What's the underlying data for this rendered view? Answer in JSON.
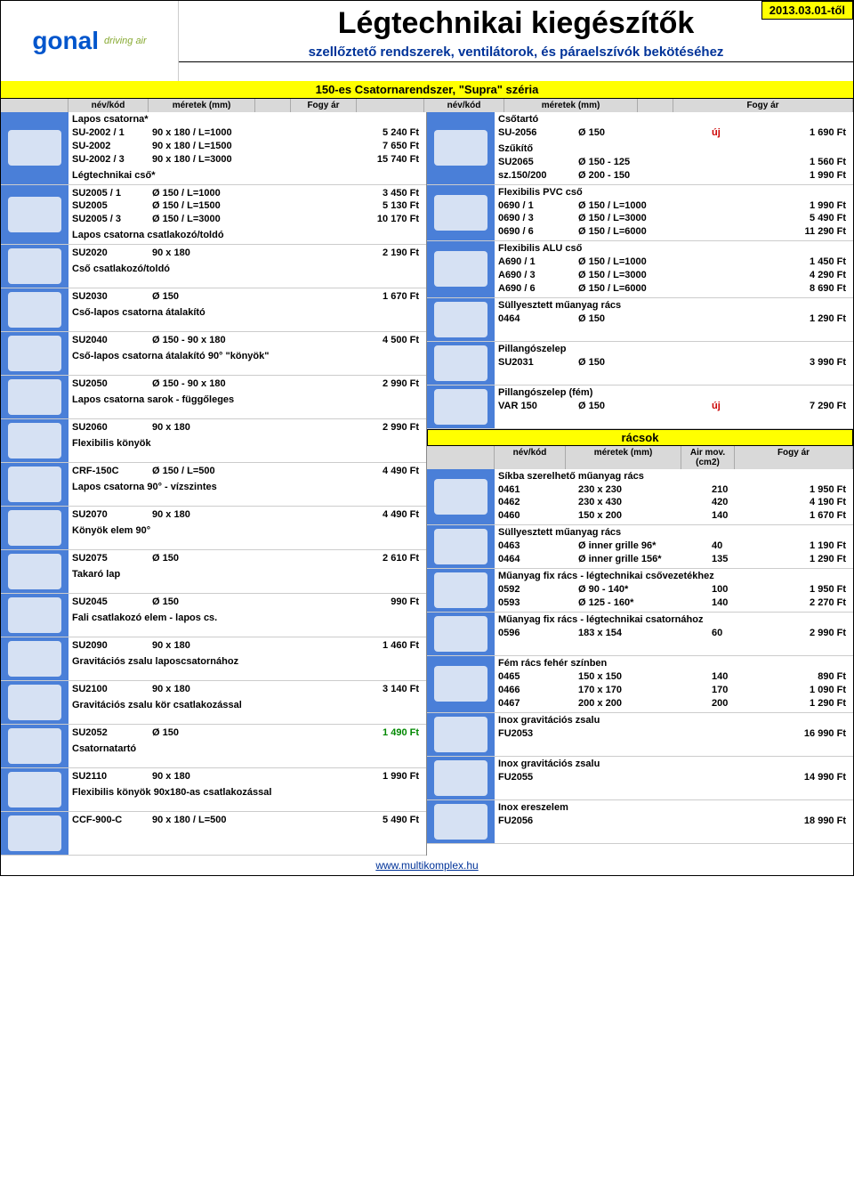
{
  "colors": {
    "yellow": "#ffff00",
    "blue_bg": "#4a7fd8",
    "header_gray": "#d9d9d9",
    "dark_blue": "#003399",
    "red": "#cc0000",
    "green": "#008800"
  },
  "header": {
    "date_badge": "2013.03.01-től",
    "logo_main": "gonal",
    "logo_sub": "driving air",
    "title": "Légtechnikai kiegészítők",
    "subtitle": "szellőztető rendszerek, ventilátorok, és páraelszívók bekötéséhez",
    "series": "150-es Csatornarendszer, \"Supra\" széria"
  },
  "col_headers": {
    "left": [
      "",
      "név/kód",
      "méretek (mm)",
      "",
      "Fogy ár"
    ],
    "right": [
      "",
      "név/kód",
      "méretek (mm)",
      "",
      "Fogy ár"
    ],
    "racs": [
      "",
      "név/kód",
      "méretek (mm)",
      "Air mov. (cm2)",
      "Fogy ár"
    ]
  },
  "racs_title": "rácsok",
  "uj_label": "új",
  "footer_url": "www.multikomplex.hu",
  "left_sections": [
    {
      "img": true,
      "title": "Lapos csatorna*",
      "rows": [
        {
          "code": "SU-2002 / 1",
          "size": "90 x 180 / L=1000",
          "price": "5 240 Ft"
        },
        {
          "code": "SU-2002",
          "size": "90 x 180 / L=1500",
          "price": "7 650 Ft"
        },
        {
          "code": "SU-2002 / 3",
          "size": "90 x 180 / L=3000",
          "price": "15 740 Ft"
        }
      ],
      "subtitles": [
        {
          "t": "Légtechnikai cső*"
        }
      ]
    },
    {
      "img": true,
      "title": "",
      "rows": [
        {
          "code": "SU2005 / 1",
          "size": "Ø 150 / L=1000",
          "price": "3 450 Ft"
        },
        {
          "code": "SU2005",
          "size": "Ø 150 / L=1500",
          "price": "5 130 Ft"
        },
        {
          "code": "SU2005 / 3",
          "size": "Ø 150 / L=3000",
          "price": "10 170 Ft"
        }
      ],
      "subtitles": [
        {
          "t": "Lapos csatorna csatlakozó/toldó"
        }
      ]
    },
    {
      "img": true,
      "title": "",
      "rows": [
        {
          "code": "SU2020",
          "size": "90 x 180",
          "price": "2 190 Ft"
        }
      ],
      "subtitles": [
        {
          "t": "Cső csatlakozó/toldó"
        }
      ]
    },
    {
      "img": true,
      "title": "",
      "rows": [
        {
          "code": "SU2030",
          "size": "Ø 150",
          "price": "1 670 Ft"
        }
      ],
      "subtitles": [
        {
          "t": "Cső-lapos csatorna átalakító"
        }
      ]
    },
    {
      "img": true,
      "title": "",
      "rows": [
        {
          "code": "SU2040",
          "size": "Ø 150 - 90 x 180",
          "price": "4 500 Ft"
        }
      ],
      "subtitles": [
        {
          "t": "Cső-lapos csatorna átalakító 90° \"könyök\""
        }
      ]
    },
    {
      "img": true,
      "title": "",
      "rows": [
        {
          "code": "SU2050",
          "size": "Ø 150 - 90 x 180",
          "price": "2 990 Ft"
        }
      ],
      "subtitles": [
        {
          "t": "Lapos csatorna sarok - függőleges"
        }
      ]
    },
    {
      "img": true,
      "title": "",
      "rows": [
        {
          "code": "SU2060",
          "size": "90 x 180",
          "price": "2 990 Ft"
        }
      ],
      "subtitles": [
        {
          "t": "Flexibilis könyök"
        }
      ]
    },
    {
      "img": true,
      "title": "",
      "rows": [
        {
          "code": "CRF-150C",
          "size": "Ø 150 / L=500",
          "price": "4 490 Ft"
        }
      ],
      "subtitles": [
        {
          "t": "Lapos csatorna 90° - vízszintes"
        }
      ]
    },
    {
      "img": true,
      "title": "",
      "rows": [
        {
          "code": "SU2070",
          "size": "90 x 180",
          "price": "4 490 Ft"
        }
      ],
      "subtitles": [
        {
          "t": "Könyök elem 90°"
        }
      ]
    },
    {
      "img": true,
      "title": "",
      "rows": [
        {
          "code": "SU2075",
          "size": "Ø 150",
          "price": "2 610 Ft"
        }
      ],
      "subtitles": [
        {
          "t": "Takaró lap"
        }
      ]
    },
    {
      "img": true,
      "title": "",
      "rows": [
        {
          "code": "SU2045",
          "size": "Ø 150",
          "price": "990 Ft"
        }
      ],
      "subtitles": [
        {
          "t": "Fali csatlakozó elem - lapos cs."
        }
      ]
    },
    {
      "img": true,
      "title": "",
      "rows": [
        {
          "code": "SU2090",
          "size": "90 x 180",
          "price": "1 460 Ft"
        }
      ],
      "subtitles": [
        {
          "t": "Gravitációs zsalu laposcsatornához"
        }
      ]
    },
    {
      "img": true,
      "title": "",
      "rows": [
        {
          "code": "SU2100",
          "size": "90 x 180",
          "price": "3 140 Ft"
        }
      ],
      "subtitles": [
        {
          "t": "Gravitációs zsalu kör csatlakozással"
        }
      ]
    },
    {
      "img": true,
      "title": "",
      "rows": [
        {
          "code": "SU2052",
          "size": "Ø 150",
          "price": "1 490 Ft",
          "green": true
        }
      ],
      "subtitles": [
        {
          "t": "Csatornatartó"
        }
      ]
    },
    {
      "img": true,
      "title": "",
      "rows": [
        {
          "code": "SU2110",
          "size": "90 x 180",
          "price": "1 990 Ft"
        }
      ],
      "subtitles": [
        {
          "t": "Flexibilis könyök 90x180-as csatlakozással"
        }
      ]
    },
    {
      "img": true,
      "title": "",
      "rows": [
        {
          "code": "CCF-900-C",
          "size": "90 x 180 / L=500",
          "price": "5 490 Ft"
        }
      ]
    }
  ],
  "right_sections": [
    {
      "img": true,
      "title": "Csőtartó",
      "rows": [
        {
          "code": "SU-2056",
          "size": "Ø 150",
          "extra": "új",
          "price": "1 690 Ft"
        }
      ],
      "subtitles": [
        {
          "t": "Szűkítő"
        }
      ],
      "rows2": [
        {
          "code": "SU2065",
          "size": "Ø 150 - 125",
          "price": "1 560 Ft"
        },
        {
          "code": "sz.150/200",
          "size": "Ø 200 - 150",
          "price": "1 990 Ft"
        }
      ]
    },
    {
      "img": true,
      "title": "Flexibilis PVC cső",
      "rows": [
        {
          "code": "0690 / 1",
          "size": "Ø 150 / L=1000",
          "price": "1 990 Ft"
        },
        {
          "code": "0690 / 3",
          "size": "Ø 150 / L=3000",
          "price": "5 490 Ft"
        },
        {
          "code": "0690 / 6",
          "size": "Ø 150 / L=6000",
          "price": "11 290 Ft"
        }
      ]
    },
    {
      "img": true,
      "title": "Flexibilis ALU cső",
      "rows": [
        {
          "code": "A690 / 1",
          "size": "Ø 150 / L=1000",
          "price": "1 450 Ft"
        },
        {
          "code": "A690 / 3",
          "size": "Ø 150 / L=3000",
          "price": "4 290 Ft"
        },
        {
          "code": "A690 / 6",
          "size": "Ø 150 / L=6000",
          "price": "8 690 Ft"
        }
      ]
    },
    {
      "img": true,
      "title": "Süllyesztett műanyag rács",
      "rows": [
        {
          "code": "0464",
          "size": "Ø 150",
          "price": "1 290 Ft"
        }
      ]
    },
    {
      "img": true,
      "title": "Pillangószelep",
      "rows": [
        {
          "code": "SU2031",
          "size": "Ø 150",
          "price": "3 990 Ft"
        }
      ]
    },
    {
      "img": true,
      "title": "Pillangószelep (fém)",
      "rows": [
        {
          "code": "VAR 150",
          "size": "Ø 150",
          "extra": "új",
          "price": "7 290 Ft"
        }
      ]
    }
  ],
  "right_racs": [
    {
      "img": true,
      "title": "Síkba szerelhető műanyag rács",
      "rows": [
        {
          "code": "0461",
          "size": "230 x 230",
          "extra": "210",
          "price": "1 950 Ft"
        },
        {
          "code": "0462",
          "size": "230 x 430",
          "extra": "420",
          "price": "4 190 Ft"
        },
        {
          "code": "0460",
          "size": "150 x 200",
          "extra": "140",
          "price": "1 670 Ft"
        }
      ]
    },
    {
      "img": true,
      "title": "Süllyesztett műanyag rács",
      "rows": [
        {
          "code": "0463",
          "size": "Ø inner grille 96*",
          "extra": "40",
          "price": "1 190 Ft"
        },
        {
          "code": "0464",
          "size": "Ø inner grille 156*",
          "extra": "135",
          "price": "1 290 Ft"
        }
      ]
    },
    {
      "img": true,
      "title": "Műanyag fix rács - légtechnikai csővezetékhez",
      "rows": [
        {
          "code": "0592",
          "size": "Ø 90 - 140*",
          "extra": "100",
          "price": "1 950 Ft"
        },
        {
          "code": "0593",
          "size": "Ø 125 - 160*",
          "extra": "140",
          "price": "2 270 Ft"
        }
      ]
    },
    {
      "img": true,
      "title": "Műanyag fix rács - légtechnikai csatornához",
      "rows": [
        {
          "code": "0596",
          "size": "183 x 154",
          "extra": "60",
          "price": "2 990 Ft"
        }
      ]
    },
    {
      "img": true,
      "title": "Fém rács fehér színben",
      "rows": [
        {
          "code": "0465",
          "size": "150 x 150",
          "extra": "140",
          "price": "890 Ft"
        },
        {
          "code": "0466",
          "size": "170 x 170",
          "extra": "170",
          "price": "1 090 Ft"
        },
        {
          "code": "0467",
          "size": "200 x 200",
          "extra": "200",
          "price": "1 290 Ft"
        }
      ]
    },
    {
      "img": true,
      "title": "Inox gravitációs zsalu",
      "rows": [
        {
          "code": "FU2053",
          "size": "",
          "extra": "",
          "price": "16 990 Ft"
        }
      ]
    },
    {
      "img": true,
      "title": "Inox gravitációs zsalu",
      "rows": [
        {
          "code": "FU2055",
          "size": "",
          "extra": "",
          "price": "14 990 Ft"
        }
      ]
    },
    {
      "img": true,
      "title": "Inox ereszelem",
      "rows": [
        {
          "code": "FU2056",
          "size": "",
          "extra": "",
          "price": "18 990 Ft"
        }
      ]
    }
  ]
}
